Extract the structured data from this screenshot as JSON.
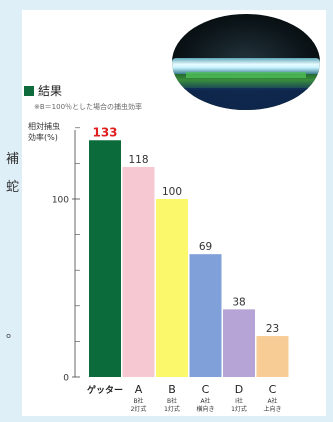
{
  "side_text": [
    "補",
    "蛇",
    "。"
  ],
  "legend": {
    "label": "結果",
    "color": "#0d6b3c"
  },
  "note": "※B＝100％とした場合の捕虫効率",
  "colors": {
    "axis": "#444444",
    "grid": "#444444"
  },
  "chart_data": {
    "type": "bar",
    "title": "結果",
    "subtitle": "※B＝100％とした場合の捕虫効率",
    "xlabel": "",
    "ylabel": "相対捕虫\n効率(%)",
    "ylim": [
      0,
      140
    ],
    "yticks": [
      0,
      100
    ],
    "categories": [
      {
        "main": "ゲッター",
        "sub1": "",
        "sub2": ""
      },
      {
        "main": "A",
        "sub1": "B社",
        "sub2": "2灯式"
      },
      {
        "main": "B",
        "sub1": "B社",
        "sub2": "1灯式"
      },
      {
        "main": "C",
        "sub1": "A社",
        "sub2": "横向き"
      },
      {
        "main": "D",
        "sub1": "I社",
        "sub2": "1灯式"
      },
      {
        "main": "C",
        "sub1": "A社",
        "sub2": "上向き"
      }
    ],
    "values": [
      133,
      118,
      100,
      69,
      38,
      23
    ],
    "value_labels": [
      "133",
      "118",
      "100",
      "69",
      "38",
      "23"
    ],
    "bar_colors": [
      "#0b6b3a",
      "#f6c9d2",
      "#fbf86c",
      "#7fa0d8",
      "#b6a4d6",
      "#f8cc95"
    ],
    "label_colors": [
      "#e02020",
      "#333333",
      "#333333",
      "#333333",
      "#333333",
      "#333333"
    ],
    "grid": false
  }
}
